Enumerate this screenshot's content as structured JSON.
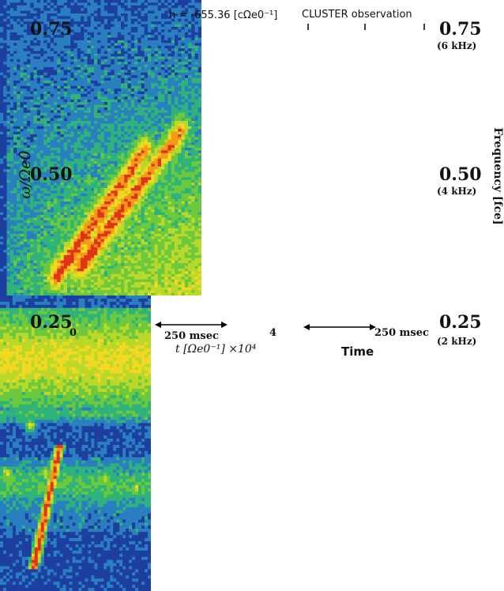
{
  "chart_data": [
    {
      "type": "heatmap",
      "title": "h = -655.36 [cΩe0⁻¹]",
      "xlabel": "t [Ωe0⁻¹] ×10⁴",
      "ylabel": "ω/Ωe0",
      "x_ticks": [
        "0",
        "4"
      ],
      "xlim": [
        0,
        4
      ],
      "y_ticks": [
        "0.75",
        "0.50",
        "0.25"
      ],
      "ylim": [
        0.25,
        0.75
      ],
      "scale_bar": "250 msec",
      "colormap": [
        "#1d3fa0",
        "#2a7fc0",
        "#2fb37a",
        "#6cc83c",
        "#b9d82a",
        "#f2d820",
        "#f59a16",
        "#e0341a"
      ],
      "features": [
        {
          "name": "rising tone 1",
          "t_start": 1.1,
          "w_start": 0.28,
          "t_end": 2.9,
          "w_end": 0.5
        },
        {
          "name": "rising tone 2",
          "t_start": 1.6,
          "w_start": 0.3,
          "t_end": 3.6,
          "w_end": 0.53
        }
      ]
    },
    {
      "type": "heatmap",
      "title": "CLUSTER observation",
      "xlabel": "Time",
      "ylabel": "Frequency [fce]",
      "y_ticks": [
        "0.75",
        "0.50",
        "0.25"
      ],
      "y_ticks_khz": [
        "(6 kHz)",
        "(4 kHz)",
        "(2 kHz)"
      ],
      "ylim": [
        0.25,
        0.75
      ],
      "scale_bar": "250 msec",
      "features": [
        {
          "name": "chorus element",
          "w_start": 0.27,
          "w_end": 0.47
        },
        {
          "name": "upper band",
          "w_low": 0.64,
          "w_high": 0.75
        }
      ]
    }
  ],
  "colors": {
    "high": "#e0341a",
    "mid": "#6cc83c",
    "low": "#1d3fa0"
  }
}
